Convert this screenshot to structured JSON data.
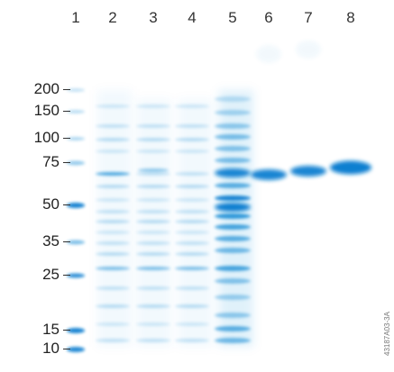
{
  "lanes": [
    "1",
    "2",
    "3",
    "4",
    "5",
    "6",
    "7",
    "8"
  ],
  "markers": [
    {
      "label": "200",
      "kda": 200
    },
    {
      "label": "150",
      "kda": 150
    },
    {
      "label": "100",
      "kda": 100
    },
    {
      "label": "75",
      "kda": 75
    },
    {
      "label": "50",
      "kda": 50
    },
    {
      "label": "35",
      "kda": 35
    },
    {
      "label": "25",
      "kda": 25
    },
    {
      "label": "15",
      "kda": 15
    },
    {
      "label": "10",
      "kda": 10
    }
  ],
  "dash": "–",
  "watermark": "43187A03-3A",
  "colors": {
    "band": "#1a8fd6",
    "ladder_strong": "#0a7fd0",
    "text": "#222222"
  }
}
